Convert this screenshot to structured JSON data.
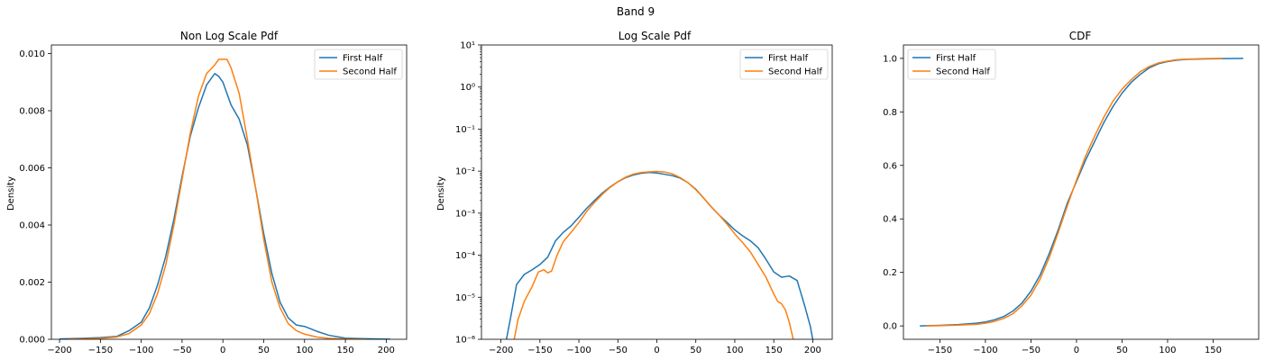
{
  "figure": {
    "suptitle": "Band 9"
  },
  "colors": {
    "first": "#1f77b4",
    "second": "#ff7f0e"
  },
  "chart_data": [
    {
      "type": "line",
      "title": "Non Log Scale Pdf",
      "xlabel": "",
      "ylabel": "Density",
      "xlim": [
        -210,
        225
      ],
      "ylim": [
        0,
        0.0103
      ],
      "yscale": "linear",
      "legend_position": "top-right",
      "xticks": [
        -200,
        -150,
        -100,
        -50,
        0,
        50,
        100,
        150,
        200
      ],
      "xtick_labels": [
        "−200",
        "−150",
        "−100",
        "−50",
        "0",
        "50",
        "100",
        "150",
        "200"
      ],
      "yticks": [
        0,
        0.002,
        0.004,
        0.006,
        0.008,
        0.01
      ],
      "ytick_labels": [
        "0.000",
        "0.002",
        "0.004",
        "0.006",
        "0.008",
        "0.010"
      ],
      "series": [
        {
          "name": "First Half",
          "x": [
            -200,
            -175,
            -150,
            -130,
            -115,
            -100,
            -90,
            -80,
            -70,
            -60,
            -50,
            -40,
            -30,
            -20,
            -10,
            -5,
            0,
            5,
            10,
            20,
            30,
            40,
            50,
            60,
            70,
            80,
            90,
            100,
            115,
            130,
            150,
            175,
            205
          ],
          "y": [
            1e-05,
            3e-05,
            6e-05,
            0.0001,
            0.0003,
            0.0006,
            0.0011,
            0.0019,
            0.0029,
            0.0042,
            0.0057,
            0.0071,
            0.0081,
            0.0089,
            0.0093,
            0.0092,
            0.009,
            0.0086,
            0.0082,
            0.0077,
            0.0068,
            0.0053,
            0.0037,
            0.0023,
            0.0013,
            0.00075,
            0.0005,
            0.00045,
            0.00028,
            0.00014,
            4e-05,
            2e-05,
            5e-06
          ]
        },
        {
          "name": "Second Half",
          "x": [
            -190,
            -170,
            -150,
            -130,
            -115,
            -100,
            -90,
            -80,
            -70,
            -60,
            -50,
            -40,
            -30,
            -20,
            -10,
            -5,
            0,
            5,
            10,
            20,
            30,
            40,
            50,
            60,
            70,
            80,
            90,
            100,
            115,
            130,
            150,
            175
          ],
          "y": [
            3e-06,
            1.5e-05,
            3e-05,
            8e-05,
            0.0002,
            0.0005,
            0.0009,
            0.0016,
            0.0026,
            0.004,
            0.0056,
            0.0072,
            0.0085,
            0.0093,
            0.0096,
            0.0098,
            0.0098,
            0.0098,
            0.0095,
            0.0086,
            0.007,
            0.0053,
            0.0035,
            0.002,
            0.0011,
            0.00055,
            0.0003,
            0.00018,
            8e-05,
            3e-05,
            1e-05,
            2e-06
          ]
        }
      ]
    },
    {
      "type": "line",
      "title": "Log Scale Pdf",
      "xlabel": "",
      "ylabel": "Density",
      "xlim": [
        -225,
        225
      ],
      "ylim": [
        1e-06,
        10
      ],
      "yscale": "log",
      "legend_position": "top-right",
      "xticks": [
        -200,
        -150,
        -100,
        -50,
        0,
        50,
        100,
        150,
        200
      ],
      "xtick_labels": [
        "−200",
        "−150",
        "−100",
        "−50",
        "0",
        "50",
        "100",
        "150",
        "200"
      ],
      "yticks": [
        -6,
        -5,
        -4,
        -3,
        -2,
        -1,
        0,
        1
      ],
      "ytick_labels": [
        "10⁻⁶",
        "10⁻⁵",
        "10⁻⁴",
        "10⁻³",
        "10⁻²",
        "10⁻¹",
        "10⁰",
        "10¹"
      ],
      "series": [
        {
          "name": "First Half",
          "x": [
            -193,
            -188,
            -180,
            -170,
            -160,
            -150,
            -140,
            -130,
            -120,
            -110,
            -100,
            -90,
            -80,
            -70,
            -60,
            -50,
            -40,
            -30,
            -20,
            -10,
            0,
            10,
            20,
            30,
            40,
            50,
            60,
            70,
            80,
            90,
            100,
            110,
            120,
            130,
            140,
            150,
            160,
            170,
            180,
            190,
            197,
            200
          ],
          "y": [
            1e-06,
            3e-06,
            2e-05,
            3.5e-05,
            4.5e-05,
            6e-05,
            9e-05,
            0.00022,
            0.00035,
            0.0005,
            0.0008,
            0.0013,
            0.002,
            0.003,
            0.0042,
            0.0056,
            0.007,
            0.0081,
            0.0089,
            0.0093,
            0.009,
            0.0084,
            0.0078,
            0.0068,
            0.0053,
            0.0037,
            0.0023,
            0.0014,
            0.0009,
            0.0006,
            0.0004,
            0.00029,
            0.00022,
            0.00015,
            8e-05,
            4e-05,
            3e-05,
            3.2e-05,
            2.5e-05,
            6e-06,
            2e-06,
            1e-06
          ]
        },
        {
          "name": "Second Half",
          "x": [
            -183,
            -178,
            -170,
            -160,
            -152,
            -145,
            -140,
            -135,
            -128,
            -120,
            -110,
            -100,
            -90,
            -80,
            -70,
            -60,
            -50,
            -40,
            -30,
            -20,
            -10,
            0,
            10,
            20,
            30,
            40,
            50,
            60,
            70,
            80,
            90,
            100,
            110,
            120,
            130,
            140,
            150,
            155,
            160,
            165,
            170,
            175
          ],
          "y": [
            1e-06,
            3e-06,
            8e-06,
            1.8e-05,
            4e-05,
            4.5e-05,
            3.8e-05,
            4.2e-05,
            0.0001,
            0.00021,
            0.00035,
            0.0006,
            0.0011,
            0.0018,
            0.0028,
            0.0041,
            0.0056,
            0.0072,
            0.0085,
            0.0093,
            0.0096,
            0.0098,
            0.0095,
            0.0086,
            0.007,
            0.0053,
            0.0036,
            0.0023,
            0.0014,
            0.0009,
            0.00055,
            0.00032,
            0.0002,
            0.00012,
            6e-05,
            3e-05,
            1.2e-05,
            8e-06,
            7e-06,
            5e-06,
            2.5e-06,
            1e-06
          ]
        }
      ]
    },
    {
      "type": "line",
      "title": "CDF",
      "xlabel": "",
      "ylabel": "",
      "xlim": [
        -190,
        200
      ],
      "ylim": [
        -0.05,
        1.05
      ],
      "yscale": "linear",
      "legend_position": "top-left",
      "xticks": [
        -150,
        -100,
        -50,
        0,
        50,
        100,
        150
      ],
      "xtick_labels": [
        "−150",
        "−100",
        "−50",
        "0",
        "50",
        "100",
        "150"
      ],
      "yticks": [
        0,
        0.2,
        0.4,
        0.6,
        0.8,
        1.0
      ],
      "ytick_labels": [
        "0.0",
        "0.2",
        "0.4",
        "0.6",
        "0.8",
        "1.0"
      ],
      "series": [
        {
          "name": "First Half",
          "x": [
            -172,
            -150,
            -130,
            -110,
            -100,
            -90,
            -80,
            -70,
            -60,
            -50,
            -40,
            -30,
            -20,
            -10,
            0,
            10,
            20,
            30,
            40,
            50,
            60,
            70,
            80,
            90,
            100,
            110,
            120,
            140,
            160,
            183
          ],
          "y": [
            0.0,
            0.002,
            0.005,
            0.01,
            0.015,
            0.023,
            0.035,
            0.055,
            0.085,
            0.13,
            0.19,
            0.27,
            0.36,
            0.46,
            0.54,
            0.62,
            0.69,
            0.76,
            0.82,
            0.87,
            0.91,
            0.94,
            0.965,
            0.98,
            0.988,
            0.993,
            0.996,
            0.998,
            0.999,
            1.0
          ]
        },
        {
          "name": "Second Half",
          "x": [
            -165,
            -150,
            -130,
            -110,
            -100,
            -90,
            -80,
            -70,
            -60,
            -50,
            -40,
            -30,
            -20,
            -10,
            0,
            10,
            20,
            30,
            40,
            50,
            60,
            70,
            80,
            90,
            100,
            110,
            120,
            140,
            160
          ],
          "y": [
            0.0,
            0.001,
            0.003,
            0.006,
            0.01,
            0.017,
            0.028,
            0.045,
            0.075,
            0.115,
            0.175,
            0.255,
            0.35,
            0.45,
            0.545,
            0.635,
            0.71,
            0.78,
            0.84,
            0.885,
            0.92,
            0.95,
            0.97,
            0.983,
            0.99,
            0.995,
            0.997,
            0.999,
            1.0
          ]
        }
      ]
    }
  ]
}
